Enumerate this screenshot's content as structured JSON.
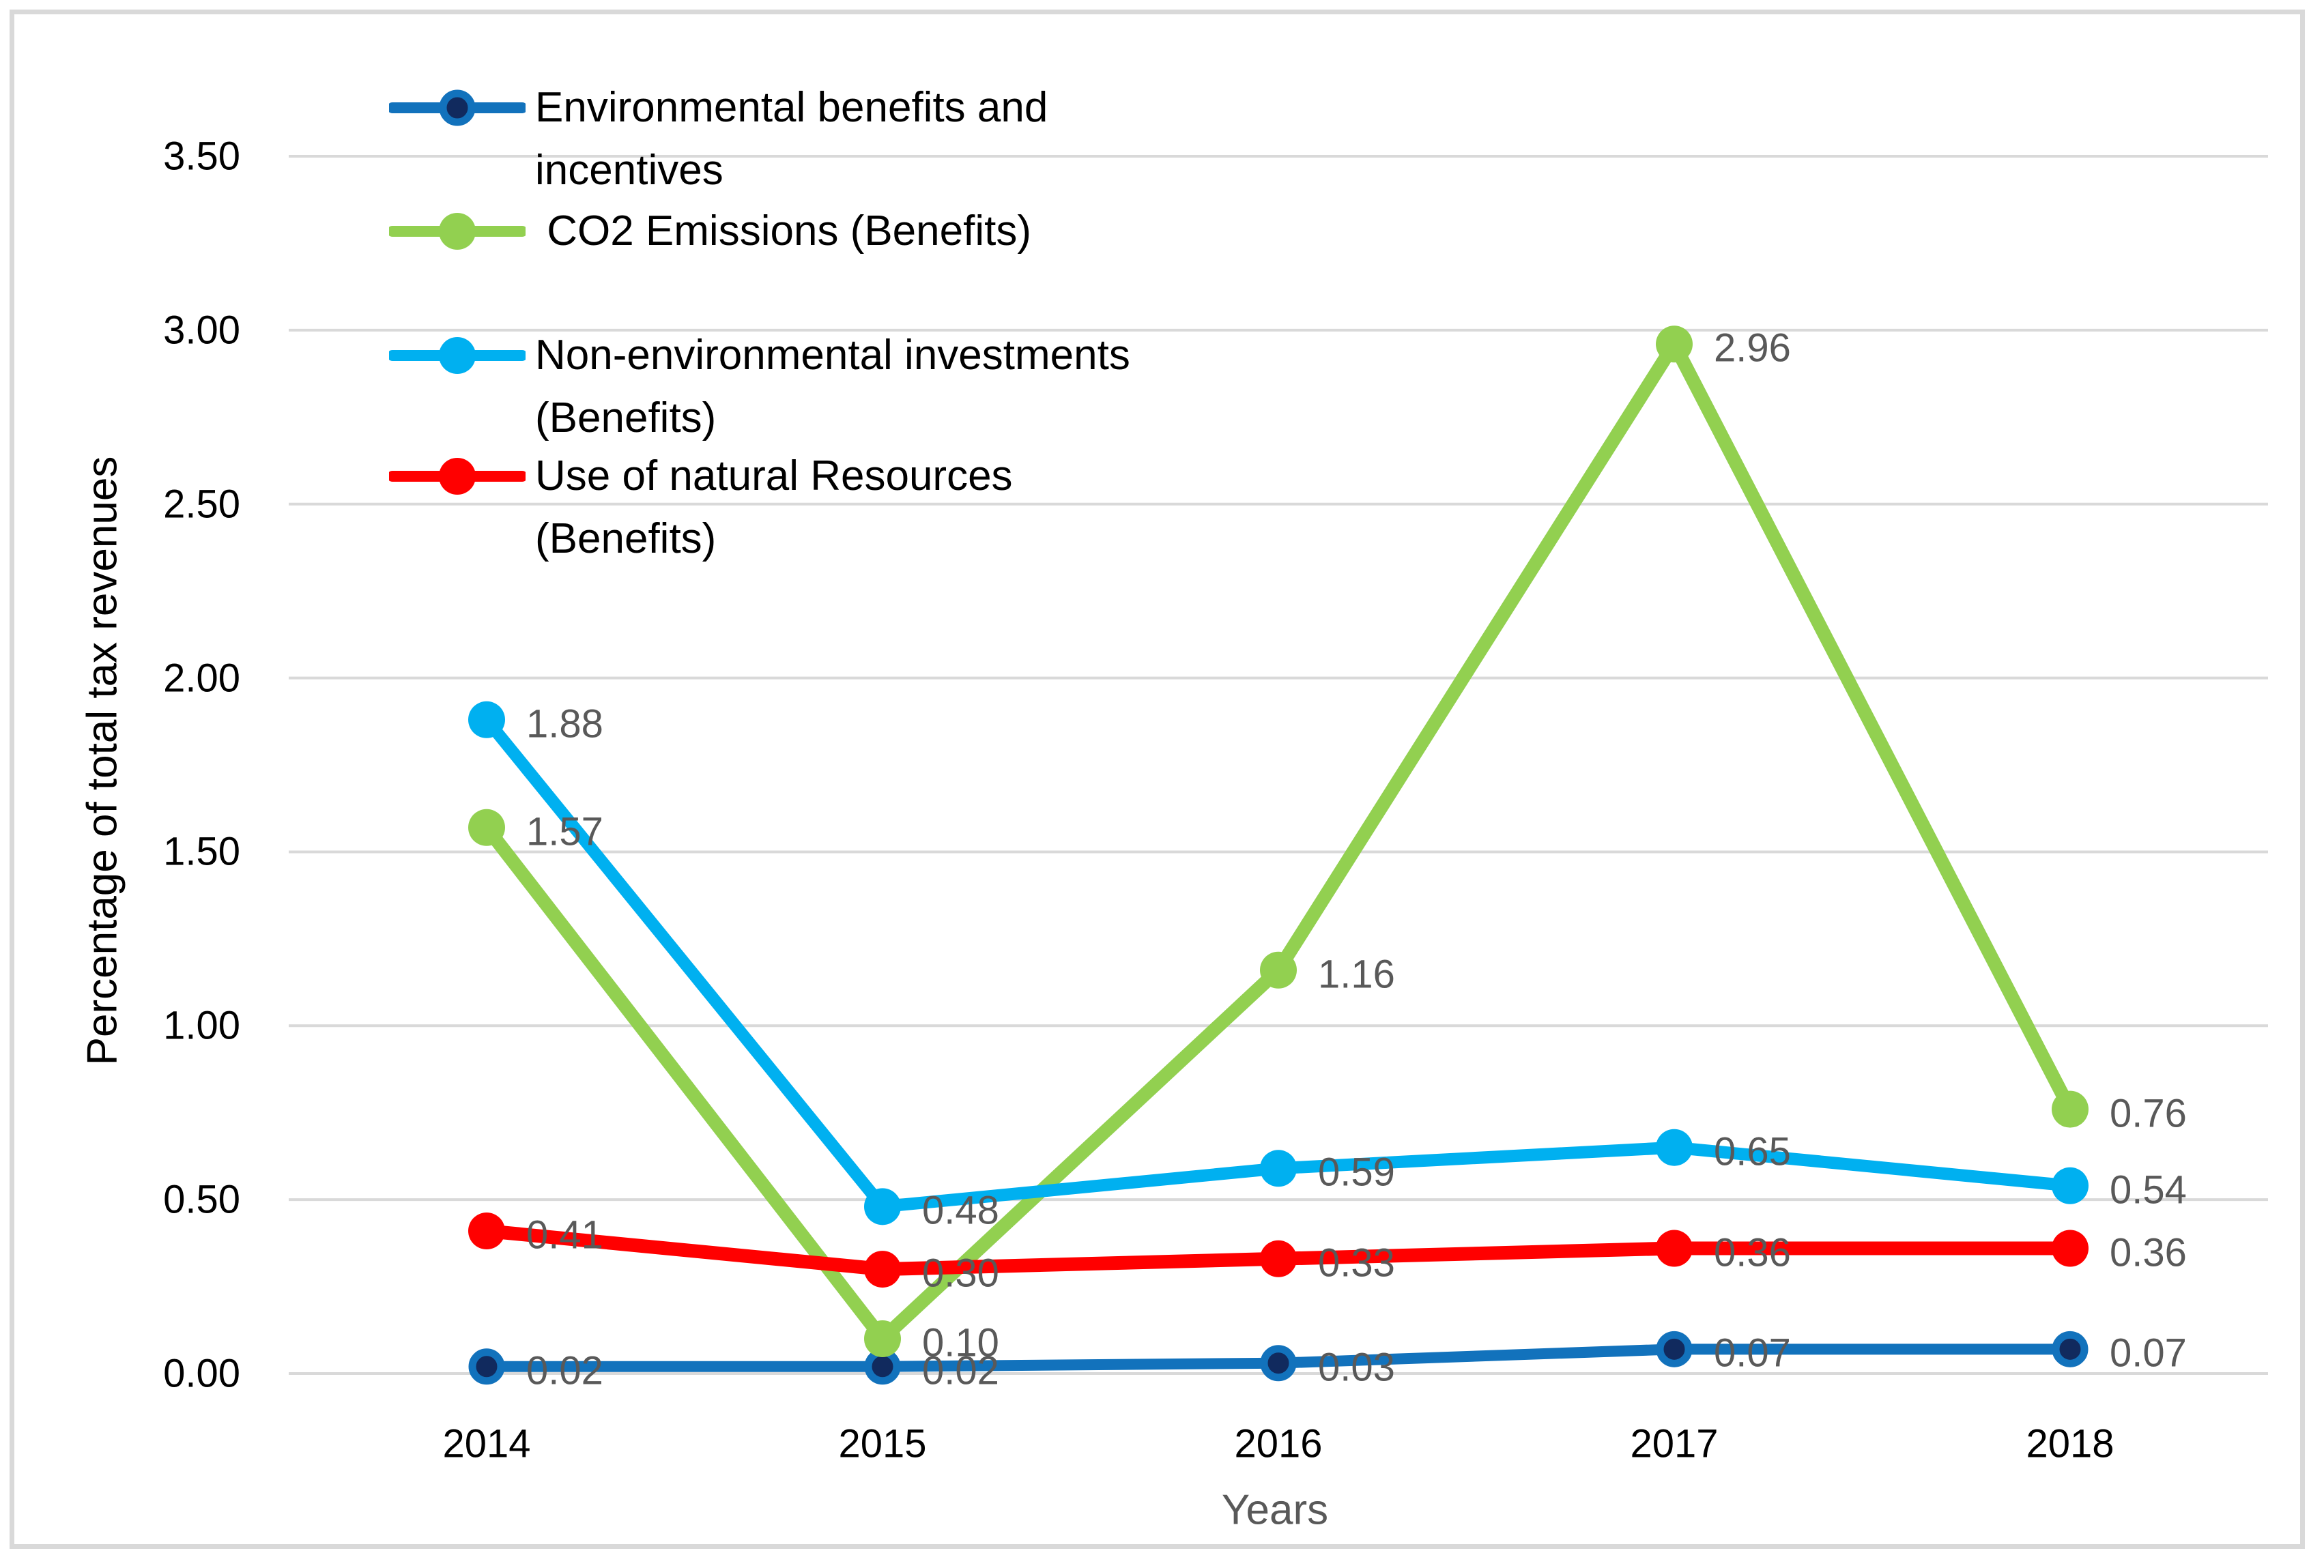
{
  "chart_data": {
    "type": "line",
    "title": "",
    "xlabel": "Years",
    "ylabel": "Percentage of total tax revenues",
    "categories": [
      "2014",
      "2015",
      "2016",
      "2017",
      "2018"
    ],
    "ylim": [
      0,
      3.5
    ],
    "ytick_step": 0.5,
    "ytick_labels": [
      "0.00",
      "0.50",
      "1.00",
      "1.50",
      "2.00",
      "2.50",
      "3.00",
      "3.50"
    ],
    "grid": true,
    "grid_color": "#D9D9D9",
    "data_label_color": "#595959",
    "legend_position": "top-left",
    "series": [
      {
        "name": "Environmental benefits and incentives",
        "color": "#1272BC",
        "marker_core": "#112A5E",
        "values": [
          0.02,
          0.02,
          0.03,
          0.07,
          0.07
        ],
        "labels": [
          "0.02",
          "0.02",
          "0.03",
          "0.07",
          "0.07"
        ]
      },
      {
        "name": "CO2 Emissions (Benefits)",
        "color": "#92D050",
        "values": [
          1.57,
          0.1,
          1.16,
          2.96,
          0.76
        ],
        "labels": [
          "1.57",
          "0.10",
          "1.16",
          "2.96",
          "0.76"
        ]
      },
      {
        "name": "Non-environmental investments (Benefits)",
        "color": "#00B0F0",
        "values": [
          1.88,
          0.48,
          0.59,
          0.65,
          0.54
        ],
        "labels": [
          "1.88",
          "0.48",
          "0.59",
          "0.65",
          "0.54"
        ]
      },
      {
        "name": "Use of natural Resources (Benefits)",
        "color": "#FF0000",
        "values": [
          0.41,
          0.3,
          0.33,
          0.36,
          0.36
        ],
        "labels": [
          "0.41",
          "0.30",
          "0.33",
          "0.36",
          "0.36"
        ]
      }
    ],
    "legend_lines": [
      [
        "Environmental benefits and",
        "incentives"
      ],
      [
        " CO2 Emissions (Benefits)"
      ],
      [
        "Non-environmental investments",
        "(Benefits)"
      ],
      [
        "Use of natural Resources",
        "(Benefits)"
      ]
    ]
  }
}
